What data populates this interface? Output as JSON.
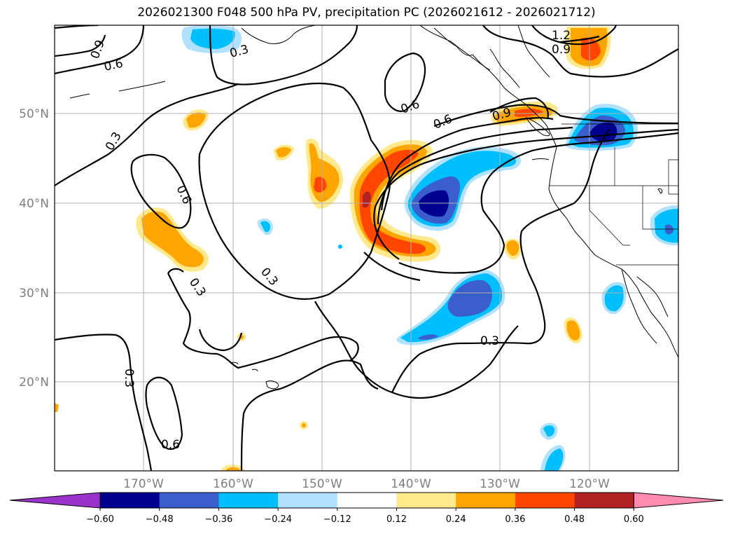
{
  "title": "2026021300 F048 500 hPa PV, precipitation PC (2026021612 - 2026021712)",
  "lat_labels": [
    "50°N",
    "40°N",
    "30°N",
    "20°N"
  ],
  "lon_labels": [
    "170°W",
    "160°W",
    "150°W",
    "140°W",
    "130°W",
    "120°W"
  ],
  "contour_labels": [
    "0.9",
    "0.6",
    "0.3",
    "1.2",
    "0.9",
    "0.6",
    "0.3",
    "0.6",
    "0.6",
    "0.9",
    "0.3",
    "0.3",
    "0.3",
    "0.3",
    "0.6"
  ],
  "colorbar": {
    "tick_labels": [
      "−0.60",
      "−0.48",
      "−0.36",
      "−0.24",
      "−0.12",
      "0.12",
      "0.24",
      "0.36",
      "0.48",
      "0.60"
    ],
    "colors": [
      "#9933cc",
      "#000090",
      "#3a5fcd",
      "#00bfff",
      "#b0e2ff",
      "#ffffff",
      "#ffe98c",
      "#ffa500",
      "#ff4500",
      "#b22222",
      "#ff8bb0"
    ]
  },
  "colors": {
    "land_outline": "#000000",
    "grid": "#b0b0b0",
    "contour": "#000000"
  }
}
